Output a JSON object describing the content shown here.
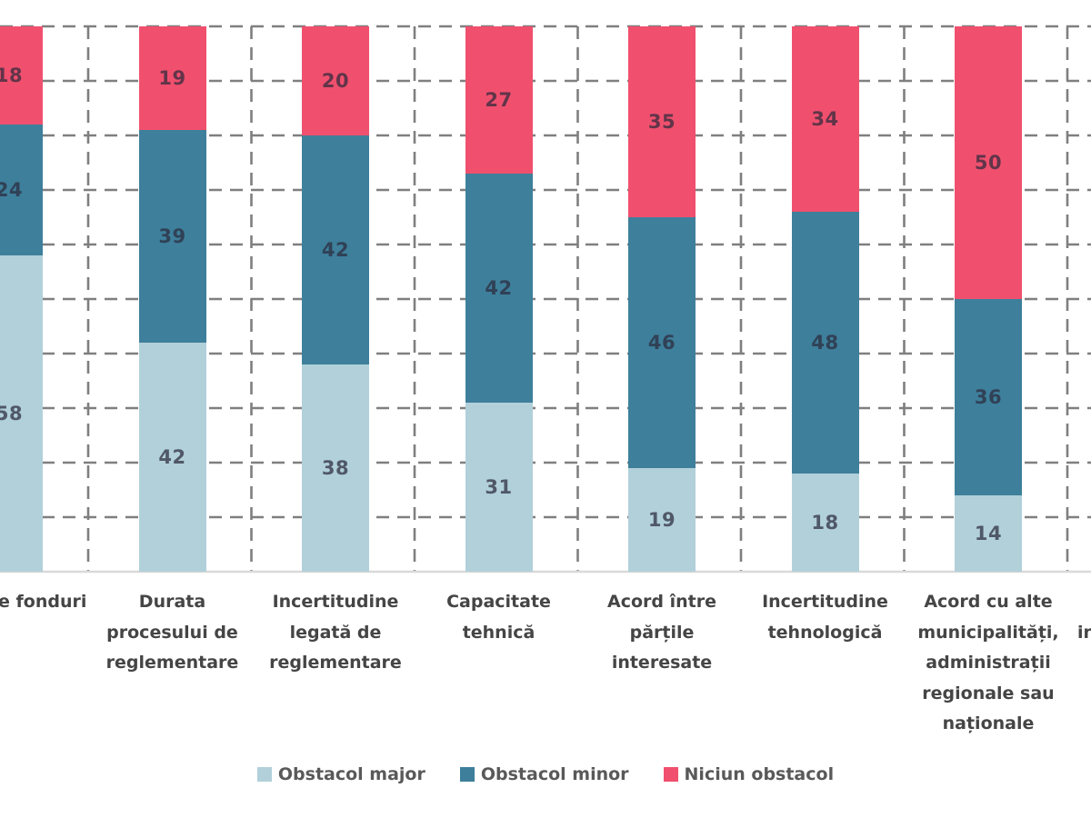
{
  "chart_data": {
    "type": "bar",
    "stacked": true,
    "unit": "percent",
    "title": "",
    "xlabel": "",
    "ylabel": "",
    "ylim": [
      0,
      100
    ],
    "gridlines": {
      "step": 10,
      "style": "dashed",
      "color": "#7f7f7f",
      "vertical": true
    },
    "axis_color": "#d9d9d9",
    "legend_position": "bottom",
    "value_labels": true,
    "categories": [
      "e fonduri",
      "Durata procesului de reglementare",
      "Incertitudine legată de reglementare",
      "Capacitate tehnică",
      "Acord între părțile interesate",
      "Incertitudine tehnologică",
      "Acord cu alte municipalități, administrații regionale sau naționale",
      "in"
    ],
    "category_lines": [
      [
        "e fonduri"
      ],
      [
        "Durata",
        "procesului de",
        "reglementare"
      ],
      [
        "Incertitudine",
        "legată de",
        "reglementare"
      ],
      [
        "Capacitate",
        "tehnică"
      ],
      [
        "Acord între",
        "părțile",
        "interesate"
      ],
      [
        "Incertitudine",
        "tehnologică"
      ],
      [
        "Acord cu alte",
        "municipalități,",
        "administrații",
        "regionale sau",
        "naționale"
      ],
      [
        "",
        "in"
      ]
    ],
    "category_partial": [
      true,
      false,
      false,
      false,
      false,
      false,
      false,
      true
    ],
    "series": [
      {
        "name": "Obstacol major",
        "color": "#b1d0da",
        "values": [
          58,
          42,
          38,
          31,
          19,
          18,
          14,
          null
        ]
      },
      {
        "name": "Obstacol minor",
        "color": "#3e7f9b",
        "values": [
          24,
          39,
          42,
          42,
          46,
          48,
          36,
          null
        ]
      },
      {
        "name": "Niciun obstacol",
        "color": "#f0506e",
        "values": [
          18,
          19,
          20,
          27,
          35,
          34,
          50,
          null
        ]
      }
    ]
  }
}
